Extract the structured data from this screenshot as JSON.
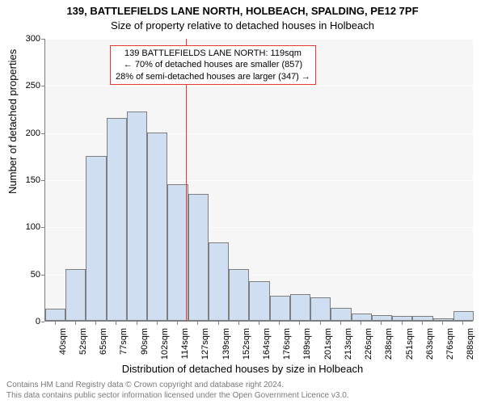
{
  "title_main": "139, BATTLEFIELDS LANE NORTH, HOLBEACH, SPALDING, PE12 7PF",
  "title_sub": "Size of property relative to detached houses in Holbeach",
  "ylabel": "Number of detached properties",
  "xlabel": "Distribution of detached houses by size in Holbeach",
  "chart": {
    "type": "histogram",
    "background_color": "#f7f6f6",
    "grid_color": "#fdfdfd",
    "axis_color": "#7f7f7f",
    "bar_fill": "#cfdef1",
    "bar_border": "#7f7f7f",
    "marker_color": "#e6392f",
    "marker_x": 119,
    "ylim": [
      0,
      300
    ],
    "ytick_step": 50,
    "x_categories": [
      "40sqm",
      "52sqm",
      "65sqm",
      "77sqm",
      "90sqm",
      "102sqm",
      "114sqm",
      "127sqm",
      "139sqm",
      "152sqm",
      "164sqm",
      "176sqm",
      "189sqm",
      "201sqm",
      "213sqm",
      "226sqm",
      "238sqm",
      "251sqm",
      "263sqm",
      "276sqm",
      "288sqm"
    ],
    "values": [
      13,
      55,
      175,
      215,
      222,
      200,
      145,
      135,
      83,
      55,
      42,
      27,
      28,
      25,
      14,
      8,
      6,
      5,
      5,
      3,
      10
    ],
    "annotation": {
      "line1": "139 BATTLEFIELDS LANE NORTH: 119sqm",
      "line2": "← 70% of detached houses are smaller (857)",
      "line3": "28% of semi-detached houses are larger (347) →",
      "border_color": "#e6392f",
      "text_color": "#000000",
      "bg_color": "#ffffff"
    }
  },
  "footer_line1": "Contains HM Land Registry data © Crown copyright and database right 2024.",
  "footer_line2": "This data contains public sector information licensed under the Open Government Licence v3.0.",
  "footer_color": "#7a7a7a"
}
